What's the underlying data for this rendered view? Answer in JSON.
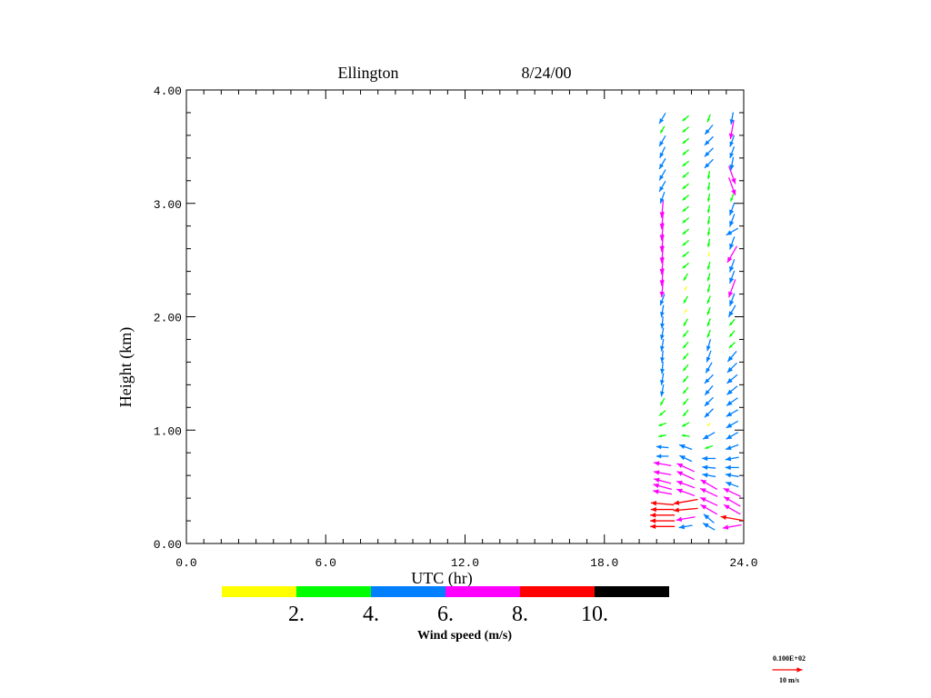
{
  "chart_data": {
    "type": "vector-profile",
    "title_site": "Ellington",
    "title_date": "8/24/00",
    "xlabel": "UTC (hr)",
    "ylabel": "Height (km)",
    "xlim": [
      0,
      24
    ],
    "ylim": [
      0,
      4
    ],
    "x_ticks": [
      "0.0",
      "6.0",
      "12.0",
      "18.0",
      "24.0"
    ],
    "x_tick_values": [
      0,
      6,
      12,
      18,
      24
    ],
    "y_ticks": [
      "0.00",
      "1.00",
      "2.00",
      "3.00",
      "4.00"
    ],
    "y_tick_values": [
      0,
      1,
      2,
      3,
      4
    ],
    "colorbar": {
      "label": "Wind speed (m/s)",
      "colors": [
        "#ffff00",
        "#00ff00",
        "#0080ff",
        "#ff00ff",
        "#ff0000",
        "#000000"
      ],
      "bounds": [
        2,
        4,
        6,
        8,
        10
      ],
      "tick_labels": [
        "2.",
        "4.",
        "6.",
        "8.",
        "10."
      ]
    },
    "reference_vector": {
      "label_top": "0.100E+02",
      "label_bottom": "10 m/s",
      "speed": 10,
      "color": "#ff0000"
    },
    "profiles_note": "each point: [height_km, speed_m_s, direction_from_deg]",
    "profiles": [
      {
        "time": 20.5,
        "points": [
          [
            0.15,
            9,
            90
          ],
          [
            0.2,
            9,
            90
          ],
          [
            0.25,
            9,
            90
          ],
          [
            0.3,
            8.5,
            90
          ],
          [
            0.35,
            8.5,
            95
          ],
          [
            0.45,
            7,
            100
          ],
          [
            0.5,
            7,
            105
          ],
          [
            0.55,
            6.5,
            105
          ],
          [
            0.62,
            6.5,
            100
          ],
          [
            0.7,
            6.5,
            100
          ],
          [
            0.77,
            4.5,
            90
          ],
          [
            0.85,
            4.5,
            95
          ],
          [
            0.95,
            3,
            80
          ],
          [
            1.05,
            3,
            70
          ],
          [
            1.15,
            3,
            50
          ],
          [
            1.25,
            3,
            30
          ],
          [
            1.35,
            4.5,
            10
          ],
          [
            1.45,
            4.5,
            10
          ],
          [
            1.55,
            4.5,
            5
          ],
          [
            1.65,
            4.5,
            5
          ],
          [
            1.75,
            4.5,
            10
          ],
          [
            1.85,
            4.5,
            10
          ],
          [
            1.95,
            4.5,
            5
          ],
          [
            2.05,
            4.5,
            10
          ],
          [
            2.15,
            4.5,
            20
          ],
          [
            2.25,
            6.5,
            5
          ],
          [
            2.35,
            6.5,
            5
          ],
          [
            2.45,
            6.5,
            5
          ],
          [
            2.55,
            6.5,
            5
          ],
          [
            2.65,
            6.5,
            5
          ],
          [
            2.75,
            6.5,
            5
          ],
          [
            2.85,
            6.5,
            5
          ],
          [
            2.95,
            6.5,
            5
          ],
          [
            3.05,
            4.5,
            20
          ],
          [
            3.15,
            4.5,
            30
          ],
          [
            3.25,
            4.5,
            30
          ],
          [
            3.35,
            4.5,
            30
          ],
          [
            3.45,
            4.5,
            25
          ],
          [
            3.55,
            4.5,
            30
          ],
          [
            3.65,
            3,
            30
          ],
          [
            3.75,
            4.5,
            30
          ]
        ]
      },
      {
        "time": 21.5,
        "points": [
          [
            0.15,
            5,
            80
          ],
          [
            0.22,
            7,
            80
          ],
          [
            0.3,
            9,
            85
          ],
          [
            0.37,
            9,
            80
          ],
          [
            0.45,
            7,
            110
          ],
          [
            0.52,
            7,
            110
          ],
          [
            0.6,
            7,
            115
          ],
          [
            0.67,
            7,
            115
          ],
          [
            0.75,
            5,
            115
          ],
          [
            0.85,
            5,
            110
          ],
          [
            0.95,
            3,
            100
          ],
          [
            1.05,
            3,
            60
          ],
          [
            1.15,
            3,
            40
          ],
          [
            1.25,
            3,
            40
          ],
          [
            1.35,
            3,
            40
          ],
          [
            1.45,
            3,
            40
          ],
          [
            1.55,
            3,
            40
          ],
          [
            1.65,
            3,
            40
          ],
          [
            1.75,
            3,
            40
          ],
          [
            1.85,
            3,
            40
          ],
          [
            1.95,
            3,
            30
          ],
          [
            2.05,
            1.5,
            40
          ],
          [
            2.15,
            3,
            30
          ],
          [
            2.25,
            1.5,
            30
          ],
          [
            2.35,
            3,
            30
          ],
          [
            2.45,
            3,
            50
          ],
          [
            2.55,
            3,
            50
          ],
          [
            2.65,
            3,
            50
          ],
          [
            2.75,
            3,
            50
          ],
          [
            2.85,
            3,
            50
          ],
          [
            2.95,
            3,
            50
          ],
          [
            3.05,
            3,
            50
          ],
          [
            3.15,
            3,
            50
          ],
          [
            3.25,
            3,
            50
          ],
          [
            3.35,
            3,
            50
          ],
          [
            3.45,
            3,
            50
          ],
          [
            3.55,
            3,
            50
          ],
          [
            3.65,
            3,
            50
          ],
          [
            3.75,
            3,
            50
          ]
        ]
      },
      {
        "time": 22.5,
        "points": [
          [
            0.15,
            5,
            120
          ],
          [
            0.22,
            5,
            130
          ],
          [
            0.3,
            7,
            120
          ],
          [
            0.37,
            7,
            115
          ],
          [
            0.45,
            7,
            115
          ],
          [
            0.52,
            7,
            120
          ],
          [
            0.6,
            5,
            100
          ],
          [
            0.67,
            5,
            95
          ],
          [
            0.75,
            5,
            90
          ],
          [
            0.85,
            3,
            70
          ],
          [
            0.95,
            5,
            60
          ],
          [
            1.05,
            1.5,
            45
          ],
          [
            1.15,
            4.5,
            45
          ],
          [
            1.25,
            4.5,
            45
          ],
          [
            1.35,
            4.5,
            40
          ],
          [
            1.45,
            4.5,
            45
          ],
          [
            1.55,
            4.5,
            30
          ],
          [
            1.65,
            4.5,
            20
          ],
          [
            1.75,
            4.5,
            15
          ],
          [
            1.85,
            3,
            20
          ],
          [
            1.95,
            3,
            20
          ],
          [
            2.05,
            3,
            20
          ],
          [
            2.15,
            3,
            20
          ],
          [
            2.25,
            3,
            15
          ],
          [
            2.35,
            3,
            15
          ],
          [
            2.45,
            3,
            15
          ],
          [
            2.55,
            1.5,
            10
          ],
          [
            2.65,
            3,
            10
          ],
          [
            2.75,
            3,
            10
          ],
          [
            2.85,
            3,
            10
          ],
          [
            2.95,
            3,
            10
          ],
          [
            3.05,
            3,
            10
          ],
          [
            3.15,
            3,
            10
          ],
          [
            3.25,
            3,
            10
          ],
          [
            3.35,
            4.5,
            45
          ],
          [
            3.45,
            4.5,
            45
          ],
          [
            3.55,
            4.5,
            45
          ],
          [
            3.65,
            4.5,
            40
          ],
          [
            3.75,
            3,
            20
          ]
        ]
      },
      {
        "time": 23.5,
        "points": [
          [
            0.15,
            7,
            80
          ],
          [
            0.22,
            8.5,
            100
          ],
          [
            0.3,
            7,
            120
          ],
          [
            0.37,
            7,
            120
          ],
          [
            0.45,
            7,
            115
          ],
          [
            0.52,
            5,
            110
          ],
          [
            0.6,
            5,
            100
          ],
          [
            0.67,
            5,
            90
          ],
          [
            0.75,
            5,
            80
          ],
          [
            0.85,
            5,
            70
          ],
          [
            0.95,
            5,
            60
          ],
          [
            1.05,
            5,
            60
          ],
          [
            1.15,
            5,
            60
          ],
          [
            1.25,
            5,
            55
          ],
          [
            1.35,
            5,
            50
          ],
          [
            1.45,
            5,
            50
          ],
          [
            1.55,
            5,
            45
          ],
          [
            1.65,
            5,
            40
          ],
          [
            1.75,
            3,
            45
          ],
          [
            1.85,
            3,
            40
          ],
          [
            1.95,
            3,
            40
          ],
          [
            2.05,
            5,
            30
          ],
          [
            2.15,
            5,
            20
          ],
          [
            2.25,
            7,
            20
          ],
          [
            2.35,
            5,
            20
          ],
          [
            2.45,
            5,
            20
          ],
          [
            2.55,
            7,
            30
          ],
          [
            2.65,
            5,
            20
          ],
          [
            2.75,
            5,
            60
          ],
          [
            2.85,
            5,
            20
          ],
          [
            2.95,
            5,
            20
          ],
          [
            3.05,
            3,
            20
          ],
          [
            3.15,
            7,
            340
          ],
          [
            3.25,
            7,
            340
          ],
          [
            3.35,
            5,
            10
          ],
          [
            3.45,
            4.5,
            20
          ],
          [
            3.55,
            4.5,
            20
          ],
          [
            3.65,
            7,
            10
          ],
          [
            3.75,
            4.5,
            10
          ]
        ]
      }
    ]
  }
}
